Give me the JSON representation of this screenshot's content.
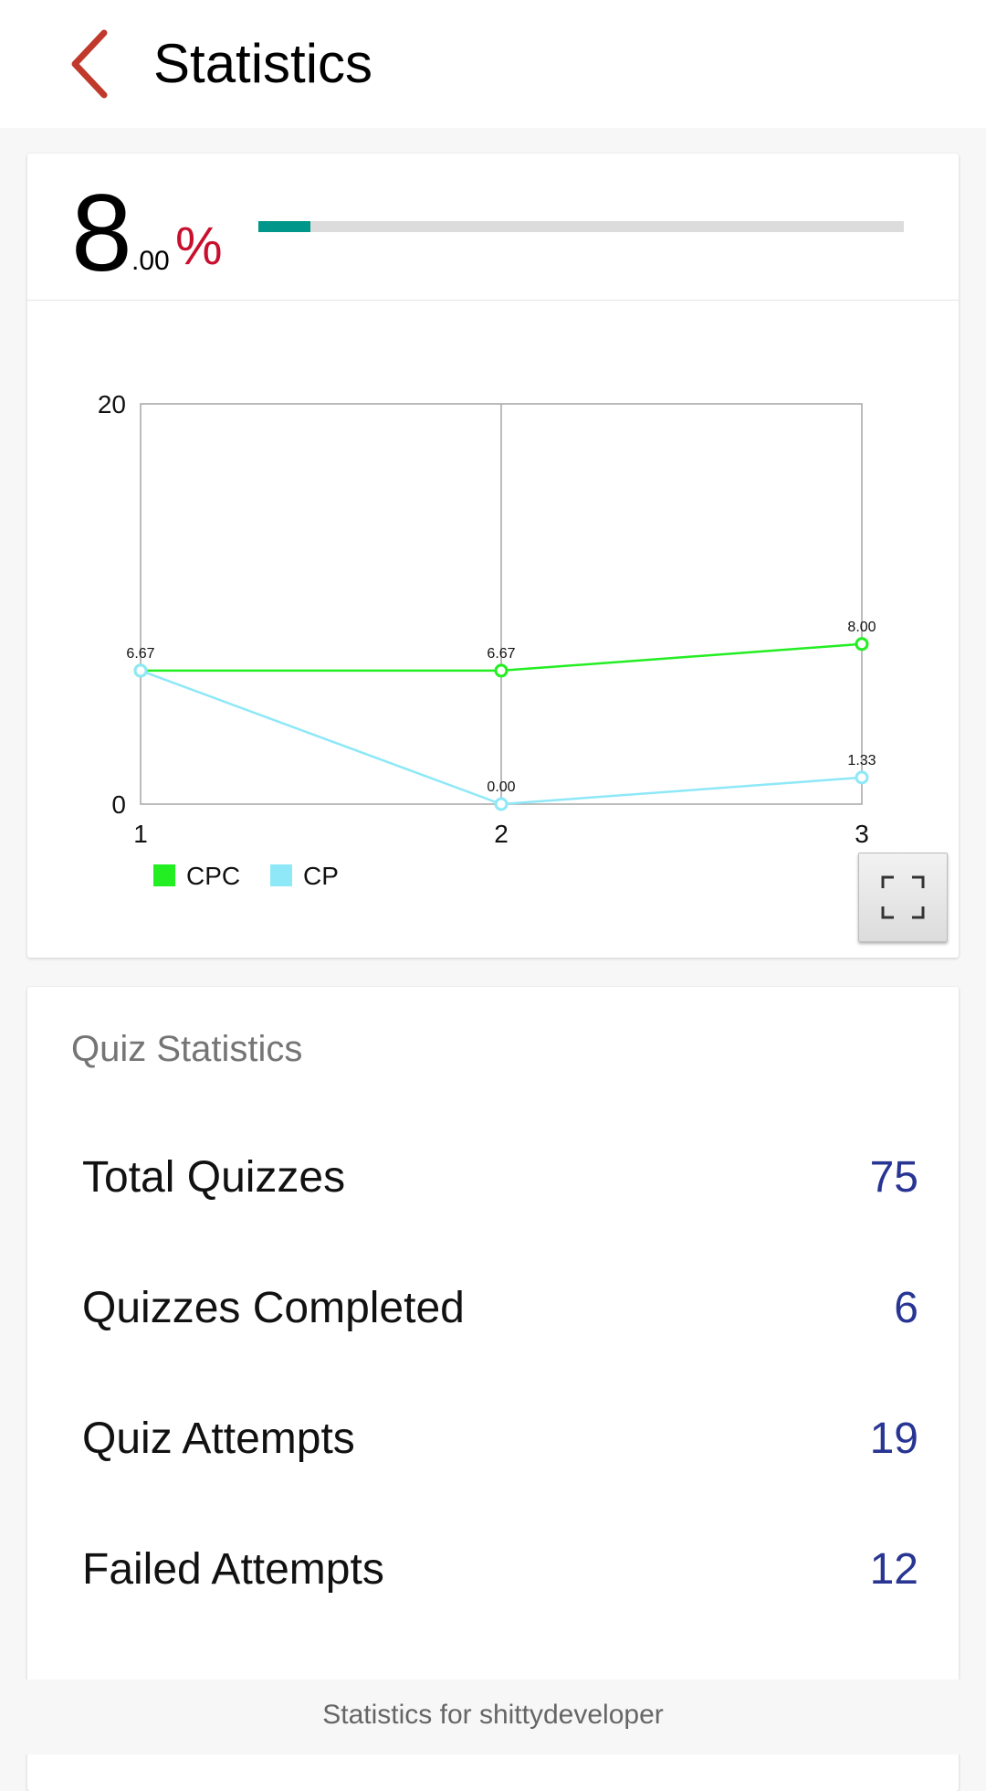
{
  "header": {
    "title": "Statistics",
    "back_icon": "chevron-left-icon",
    "back_color": "#c0392b"
  },
  "score": {
    "integer": "8",
    "decimals": ".00",
    "percent_sign": "%",
    "progress_percent": 8
  },
  "chart_data": {
    "type": "line",
    "categories": [
      "1",
      "2",
      "3"
    ],
    "x": [
      1,
      2,
      3
    ],
    "ylim": [
      0,
      20
    ],
    "y_ticks": [
      "0",
      "20"
    ],
    "grid": true,
    "legend": "bottom-left",
    "series": [
      {
        "name": "CPC",
        "color": "#22ee22",
        "values": [
          6.67,
          6.67,
          8.0
        ],
        "labels": [
          "6.67",
          "6.67",
          "8.00"
        ]
      },
      {
        "name": "CP",
        "color": "#8ee8f8",
        "values": [
          6.67,
          0.0,
          1.33
        ],
        "labels": [
          "",
          "0.00",
          "1.33"
        ]
      }
    ]
  },
  "quiz": {
    "section_title": "Quiz Statistics",
    "rows": [
      {
        "label": "Total Quizzes",
        "value": "75"
      },
      {
        "label": "Quizzes Completed",
        "value": "6"
      },
      {
        "label": "Quiz Attempts",
        "value": "19"
      },
      {
        "label": "Failed Attempts",
        "value": "12"
      }
    ]
  },
  "footer": {
    "text": "Statistics for shittydeveloper"
  }
}
